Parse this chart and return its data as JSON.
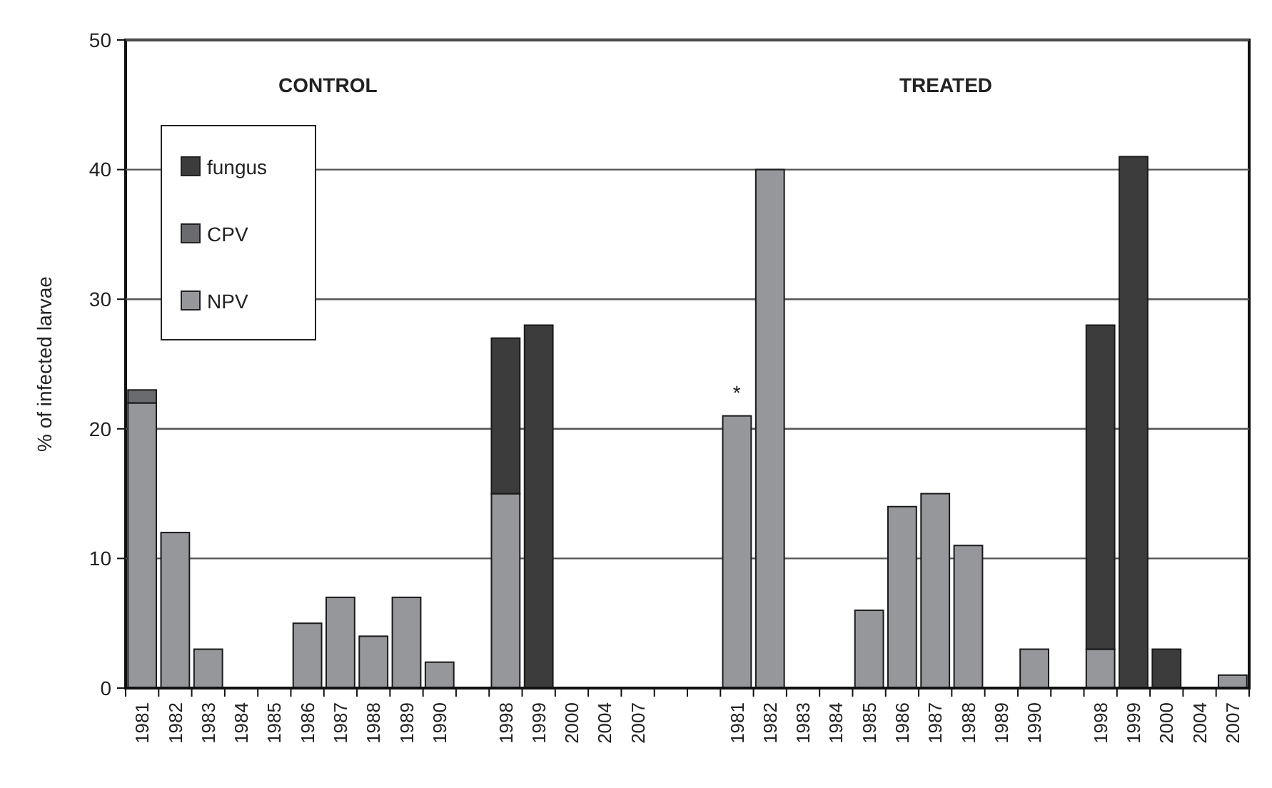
{
  "chart_data": {
    "type": "bar",
    "stacked": true,
    "ylabel": "% of infected larvae",
    "categories": [
      "1981",
      "1982",
      "1983",
      "1984",
      "1985",
      "1986",
      "1987",
      "1988",
      "1989",
      "1990",
      null,
      "1998",
      "1999",
      "2000",
      "2004",
      "2007",
      null,
      null,
      "1981",
      "1982",
      "1983",
      "1984",
      "1985",
      "1986",
      "1987",
      "1988",
      "1989",
      "1990",
      null,
      "1998",
      "1999",
      "2000",
      "2004",
      "2007"
    ],
    "series": [
      {
        "name": "NPV",
        "color": "#96979b",
        "values": [
          22,
          12,
          3,
          0,
          0,
          5,
          7,
          4,
          7,
          2,
          null,
          15,
          0,
          0,
          0,
          0,
          null,
          null,
          21,
          40,
          0,
          0,
          6,
          14,
          15,
          11,
          0,
          3,
          null,
          3,
          0,
          0,
          0,
          1
        ]
      },
      {
        "name": "CPV",
        "color": "#6a6b6f",
        "values": [
          1,
          0,
          0,
          0,
          0,
          0,
          0,
          0,
          0,
          0,
          null,
          0,
          0,
          0,
          0,
          0,
          null,
          null,
          0,
          0,
          0,
          0,
          0,
          0,
          0,
          0,
          0,
          0,
          null,
          0,
          0,
          0,
          0,
          0
        ]
      },
      {
        "name": "fungus",
        "color": "#3c3c3c",
        "values": [
          0,
          0,
          0,
          0,
          0,
          0,
          0,
          0,
          0,
          0,
          null,
          12,
          28,
          0,
          0,
          0,
          null,
          null,
          0,
          0,
          0,
          0,
          0,
          0,
          0,
          0,
          0,
          0,
          null,
          25,
          41,
          3,
          0,
          0
        ]
      }
    ],
    "ylim": [
      0,
      50
    ],
    "yticks": [
      0,
      10,
      20,
      30,
      40,
      50
    ],
    "grid": "y",
    "legend": "top left",
    "annotations": [
      "CONTROL",
      "TREATED",
      "*"
    ]
  }
}
